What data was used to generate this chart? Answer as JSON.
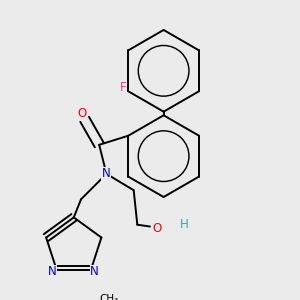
{
  "bg_color": "#ebebeb",
  "bond_color": "#000000",
  "bond_width": 1.4,
  "dbo": 0.055,
  "atom_colors": {
    "F": "#cc44aa",
    "O": "#ff0000",
    "N": "#0000cc",
    "H_OH": "#20b2aa",
    "C": "#000000"
  },
  "font_size_atom": 8.5,
  "font_size_small": 7.5
}
